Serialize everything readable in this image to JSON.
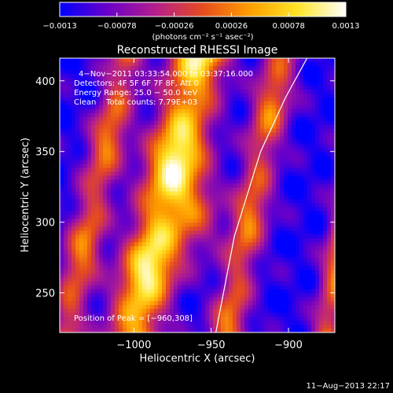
{
  "chart_data": {
    "type": "heatmap",
    "title": "Reconstructed RHESSI Image",
    "xlabel": "Heliocentric X (arcsec)",
    "ylabel": "Heliocentric Y (arcsec)",
    "xlim": [
      -1048,
      -870
    ],
    "ylim": [
      222,
      416
    ],
    "xticks": [
      -1000,
      -950,
      -900
    ],
    "xtick_labels": [
      "−1000",
      "−950",
      "−900"
    ],
    "yticks": [
      250,
      300,
      350,
      400
    ],
    "ytick_labels": [
      "250",
      "300",
      "350",
      "400"
    ],
    "colorbar": {
      "min": -0.0013,
      "max": 0.0013,
      "ticks": [
        -0.0013,
        -0.00078,
        -0.00026,
        0.00026,
        0.00078,
        0.0013
      ],
      "tick_labels": [
        "−0.0013",
        "−0.00078",
        "−0.00026",
        "0.00026",
        "0.00078",
        "0.0013"
      ],
      "units": "(photons cm⁻² s⁻¹ asec⁻²)",
      "colors": [
        "#0000ff",
        "#6a00c8",
        "#b41e8c",
        "#e64b1e",
        "#ffa000",
        "#ffe628",
        "#ffffff"
      ]
    },
    "annotations": [
      "4−Nov−2011 03:33:54.000 to 03:37:16.000",
      "Detectors: 4F 5F 6F 7F 8F, Att 0",
      "Energy Range: 25.0 − 50.0 keV",
      "Clean    Total counts: 7.79E+03"
    ],
    "peak_label": "Position of Peak = [−960,308]",
    "bands": [
      {
        "x_at_bottom": -1045,
        "x_at_top": -1005,
        "level": 0.55,
        "width": 12
      },
      {
        "x_at_bottom": -1000,
        "x_at_top": -958,
        "level": 0.9,
        "width": 18
      },
      {
        "x_at_bottom": -940,
        "x_at_top": -905,
        "level": 0.55,
        "width": 12
      },
      {
        "x_at_bottom": -875,
        "x_at_top": -845,
        "level": 0.6,
        "width": 10
      }
    ],
    "peak": {
      "x": -960,
      "y": 308
    },
    "limb_curve": [
      [
        -947,
        222
      ],
      [
        -935,
        290
      ],
      [
        -918,
        350
      ],
      [
        -902,
        388
      ],
      [
        -888,
        416
      ]
    ]
  },
  "date_stamp": "11−Aug−2013 22:17"
}
